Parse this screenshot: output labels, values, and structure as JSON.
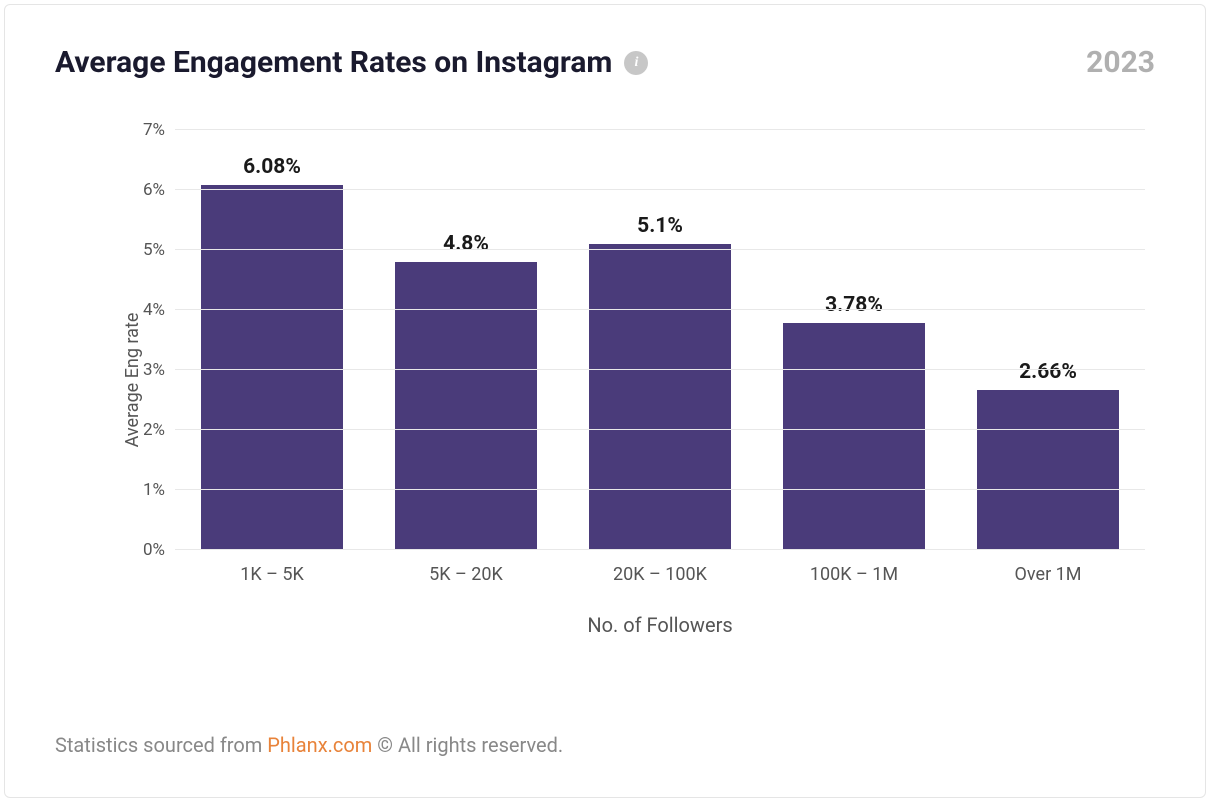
{
  "header": {
    "title": "Average Engagement Rates on Instagram",
    "year": "2023"
  },
  "chart": {
    "type": "bar",
    "y_axis_label": "Average Eng rate",
    "x_axis_label": "No. of Followers",
    "ylim": [
      0,
      7
    ],
    "ytick_step": 1,
    "yticks": [
      "0%",
      "1%",
      "2%",
      "3%",
      "4%",
      "5%",
      "6%",
      "7%"
    ],
    "categories": [
      "1K – 5K",
      "5K – 20K",
      "20K – 100K",
      "100K – 1M",
      "Over 1M"
    ],
    "values": [
      6.08,
      4.8,
      5.1,
      3.78,
      2.66
    ],
    "value_labels": [
      "6.08%",
      "4.8%",
      "5.1%",
      "3.78%",
      "2.66%"
    ],
    "bar_color": "#4a3b7a",
    "grid_color": "#e8e8e8",
    "background_color": "#ffffff",
    "tick_font_color": "#555555",
    "value_label_font_color": "#1a1a1a",
    "title_fontsize": 30,
    "label_fontsize": 18,
    "value_fontsize": 21,
    "bar_width_ratio": 0.73
  },
  "footer": {
    "prefix": "Statistics sourced from ",
    "source": "Phlanx.com",
    "suffix": " © All rights reserved.",
    "source_color": "#e8833a"
  }
}
